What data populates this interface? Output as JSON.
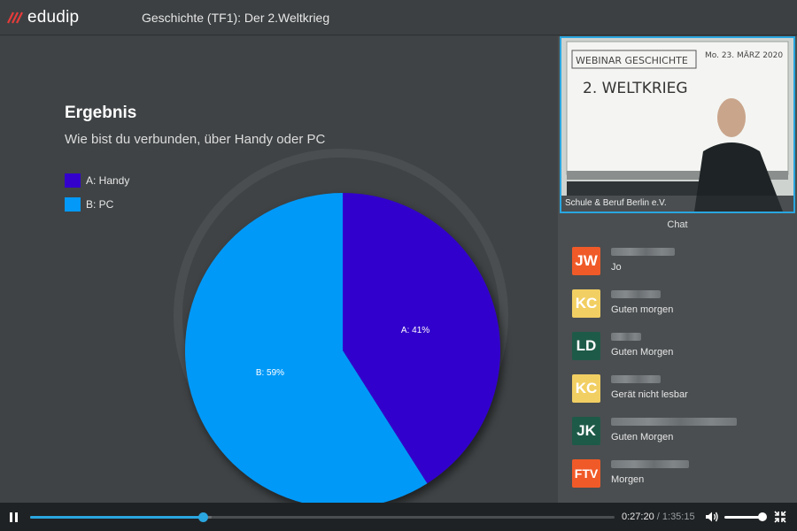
{
  "app": {
    "logo_text": "edudip",
    "title": "Geschichte (TF1): Der 2.Weltkrieg"
  },
  "result": {
    "heading": "Ergebnis",
    "question": "Wie bist du verbunden, über Handy oder PC"
  },
  "chart_data": {
    "type": "pie",
    "labels": [
      "A: Handy",
      "B: PC"
    ],
    "values": [
      41,
      59
    ],
    "slice_labels": [
      "A: 41%",
      "B: 59%"
    ],
    "colors": [
      "#3300cc",
      "#0399f8"
    ],
    "legend_position": "top-left"
  },
  "video": {
    "caption": "Schule & Beruf Berlin e.V.",
    "board_title": "WEBINAR GESCHICHTE",
    "board_date": "Mo. 23. MÄRZ 2020",
    "board_topic": "2. WELTKRIEG"
  },
  "chat": {
    "title": "Chat",
    "messages": [
      {
        "initials": "JW",
        "color": "#f05a28",
        "text": "Jo"
      },
      {
        "initials": "KC",
        "color": "#f2cf63",
        "text": "Guten morgen"
      },
      {
        "initials": "LD",
        "color": "#1e5a48",
        "text": "Guten Morgen"
      },
      {
        "initials": "KC",
        "color": "#f2cf63",
        "text": "Gerät nicht lesbar"
      },
      {
        "initials": "JK",
        "color": "#1e5a48",
        "text": "Guten Morgen"
      },
      {
        "initials": "FTV",
        "color": "#f05a28",
        "text": "Morgen"
      }
    ]
  },
  "player": {
    "current_time": "0:27:20",
    "separator": "/",
    "total_time": "1:35:15",
    "progress": 0.295,
    "buffered": 0.31,
    "volume": 0.85
  }
}
